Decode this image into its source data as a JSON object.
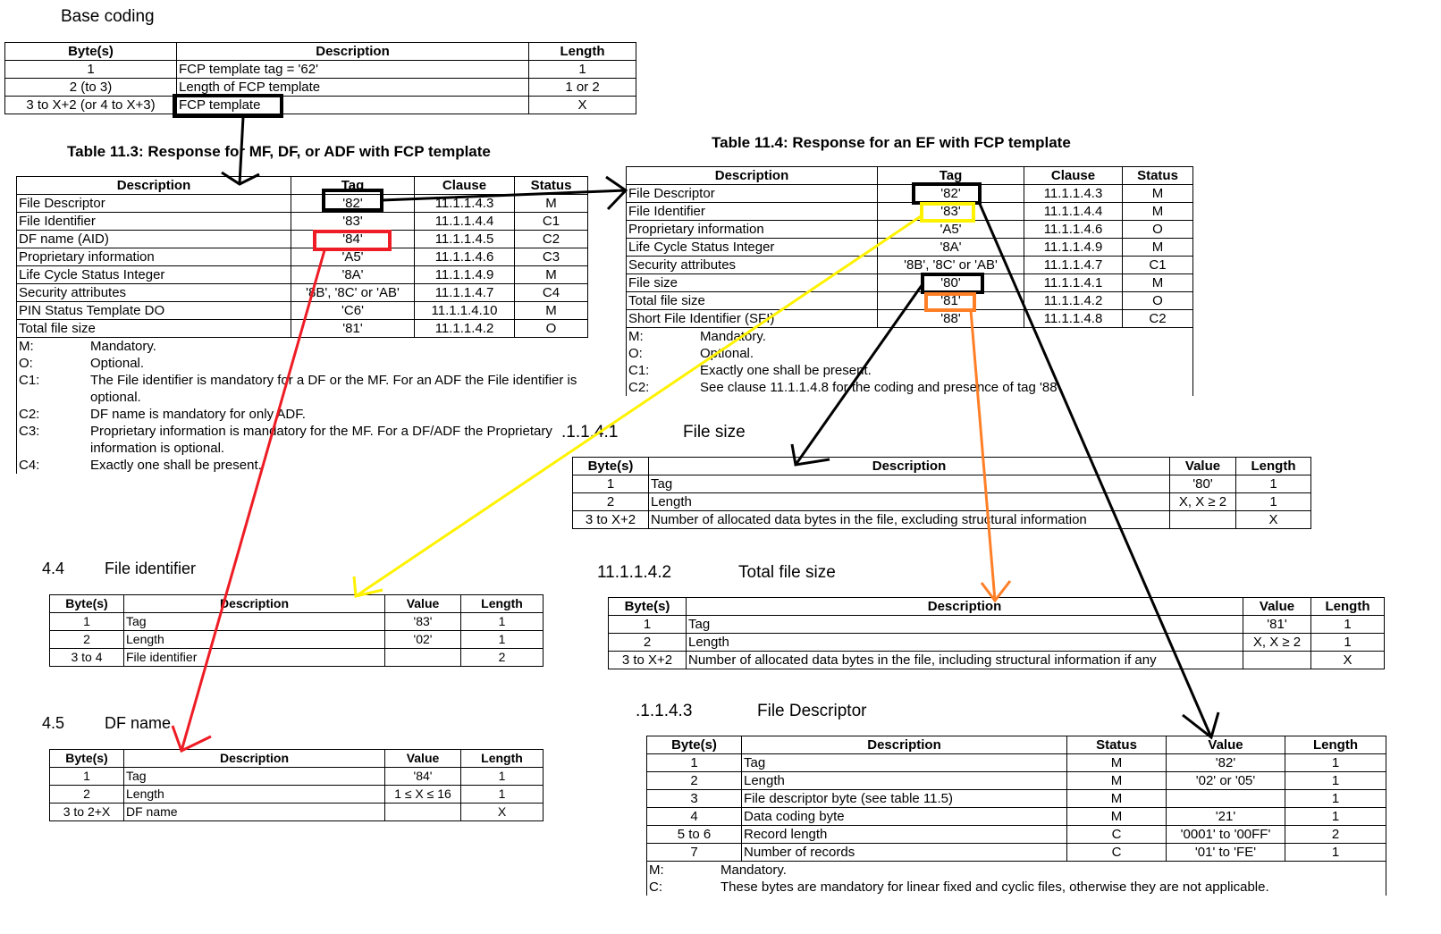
{
  "base": {
    "title": "Base coding",
    "columns": [
      "Byte(s)",
      "Description",
      "Length"
    ],
    "rows": [
      [
        "1",
        "FCP template tag = '62'",
        "1"
      ],
      [
        "2 (to 3)",
        "Length of FCP template",
        "1 or 2"
      ],
      [
        "3 to X+2 (or 4 to X+3)",
        "FCP template",
        "X"
      ]
    ]
  },
  "t113": {
    "title": "Table 11.3: Response for MF, DF, or ADF with FCP template",
    "columns": [
      "Description",
      "Tag",
      "Clause",
      "Status"
    ],
    "rows": [
      [
        "File Descriptor",
        "'82'",
        "11.1.1.4.3",
        "M"
      ],
      [
        "File Identifier",
        "'83'",
        "11.1.1.4.4",
        "C1"
      ],
      [
        "DF name (AID)",
        "'84'",
        "11.1.1.4.5",
        "C2"
      ],
      [
        "Proprietary information",
        "'A5'",
        "11.1.1.4.6",
        "C3"
      ],
      [
        "Life Cycle Status Integer",
        "'8A'",
        "11.1.1.4.9",
        "M"
      ],
      [
        "Security attributes",
        "'8B', '8C' or 'AB'",
        "11.1.1.4.7",
        "C4"
      ],
      [
        "PIN Status Template DO",
        "'C6'",
        "11.1.1.4.10",
        "M"
      ],
      [
        "Total file size",
        "'81'",
        "11.1.1.4.2",
        "O"
      ]
    ],
    "notes": [
      [
        "M:",
        "Mandatory."
      ],
      [
        "O:",
        "Optional."
      ],
      [
        "C1:",
        "The File identifier is mandatory for a DF or the MF. For an ADF the File identifier is optional."
      ],
      [
        "C2:",
        "DF name is mandatory for only ADF."
      ],
      [
        "C3:",
        "Proprietary information is mandatory for the MF. For a DF/ADF the Proprietary information is optional."
      ],
      [
        "C4:",
        "Exactly one shall be present."
      ]
    ]
  },
  "t114": {
    "title": "Table 11.4: Response for an EF with FCP template",
    "columns": [
      "Description",
      "Tag",
      "Clause",
      "Status"
    ],
    "rows": [
      [
        "File Descriptor",
        "'82'",
        "11.1.1.4.3",
        "M"
      ],
      [
        "File Identifier",
        "'83'",
        "11.1.1.4.4",
        "M"
      ],
      [
        "Proprietary information",
        "'A5'",
        "11.1.1.4.6",
        "O"
      ],
      [
        "Life Cycle Status Integer",
        "'8A'",
        "11.1.1.4.9",
        "M"
      ],
      [
        "Security attributes",
        "'8B', '8C' or 'AB'",
        "11.1.1.4.7",
        "C1"
      ],
      [
        "File size",
        "'80'",
        "11.1.1.4.1",
        "M"
      ],
      [
        "Total file size",
        "'81'",
        "11.1.1.4.2",
        "O"
      ],
      [
        "Short File Identifier (SFI)",
        "'88'",
        "11.1.1.4.8",
        "C2"
      ]
    ],
    "notes": [
      [
        "M:",
        "Mandatory."
      ],
      [
        "O:",
        "Optional."
      ],
      [
        "C1:",
        "Exactly one shall be present."
      ],
      [
        "C2:",
        "See clause 11.1.1.4.8 for the coding and presence of tag '88'."
      ]
    ]
  },
  "filesize": {
    "num": ".1.1.4.1",
    "title": "File size",
    "columns": [
      "Byte(s)",
      "Description",
      "Value",
      "Length"
    ],
    "rows": [
      [
        "1",
        "Tag",
        "'80'",
        "1"
      ],
      [
        "2",
        "Length",
        "X, X ≥ 2",
        "1"
      ],
      [
        "3 to X+2",
        "Number of allocated data bytes in the file, excluding structural information",
        "",
        "X"
      ]
    ]
  },
  "totalsize": {
    "num": "11.1.1.4.2",
    "title": "Total file size",
    "columns": [
      "Byte(s)",
      "Description",
      "Value",
      "Length"
    ],
    "rows": [
      [
        "1",
        "Tag",
        "'81'",
        "1"
      ],
      [
        "2",
        "Length",
        "X, X ≥ 2",
        "1"
      ],
      [
        "3 to X+2",
        "Number of allocated data bytes in the file, including structural information if any",
        "",
        "X"
      ]
    ]
  },
  "filedesc": {
    "num": ".1.1.4.3",
    "title": "File Descriptor",
    "columns": [
      "Byte(s)",
      "Description",
      "Status",
      "Value",
      "Length"
    ],
    "rows": [
      [
        "1",
        "Tag",
        "M",
        "'82'",
        "1"
      ],
      [
        "2",
        "Length",
        "M",
        "'02' or '05'",
        "1"
      ],
      [
        "3",
        "File descriptor byte (see table 11.5)",
        "M",
        "",
        "1"
      ],
      [
        "4",
        "Data coding byte",
        "M",
        "'21'",
        "1"
      ],
      [
        "5 to 6",
        "Record length",
        "C",
        "'0001' to '00FF'",
        "2"
      ],
      [
        "7",
        "Number of records",
        "C",
        "'01' to 'FE'",
        "1"
      ]
    ],
    "notes": [
      [
        "M:",
        "Mandatory."
      ],
      [
        "C:",
        "These bytes are mandatory for linear fixed and cyclic files, otherwise they are not applicable."
      ]
    ]
  },
  "fileid": {
    "num": "4.4",
    "title": "File identifier",
    "columns": [
      "Byte(s)",
      "Description",
      "Value",
      "Length"
    ],
    "rows": [
      [
        "1",
        "Tag",
        "'83'",
        "1"
      ],
      [
        "2",
        "Length",
        "'02'",
        "1"
      ],
      [
        "3 to 4",
        "File identifier",
        "",
        "2"
      ]
    ]
  },
  "dfname": {
    "num": "4.5",
    "title": "DF name",
    "columns": [
      "Byte(s)",
      "Description",
      "Value",
      "Length"
    ],
    "rows": [
      [
        "1",
        "Tag",
        "'84'",
        "1"
      ],
      [
        "2",
        "Length",
        "1 ≤ X ≤ 16",
        "1"
      ],
      [
        "3 to 2+X",
        "DF name",
        "",
        "X"
      ]
    ]
  },
  "annotation_colors": {
    "black": "#000000",
    "red": "#ee1c24",
    "yellow": "#fff200",
    "orange": "#ff7f27"
  }
}
